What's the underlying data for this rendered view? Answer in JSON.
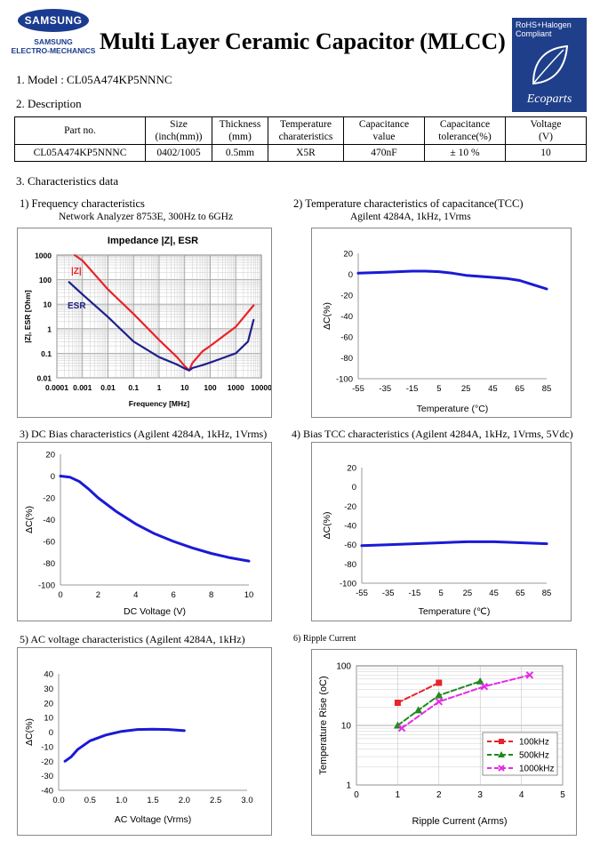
{
  "header": {
    "brand_name": "SAMSUNG",
    "brand_line1": "SAMSUNG",
    "brand_line2": "ELECTRO-MECHANICS",
    "title": "Multi Layer Ceramic Capacitor (MLCC)",
    "badge_text": "RoHS+Halogen Compliant",
    "badge_brand": "Ecoparts"
  },
  "model_line": "1. Model : CL05A474KP5NNNC",
  "description_heading": "2. Description",
  "table": {
    "headers": [
      [
        "Part no."
      ],
      [
        "Size",
        "(inch(mm))"
      ],
      [
        "Thickness",
        "(mm)"
      ],
      [
        "Temperature",
        "charateristics"
      ],
      [
        "Capacitance",
        "value"
      ],
      [
        "Capacitance",
        "tolerance(%)"
      ],
      [
        "Voltage",
        "(V)"
      ]
    ],
    "row": [
      "CL05A474KP5NNNC",
      "0402/1005",
      "0.5mm",
      "X5R",
      "470nF",
      "± 10 %",
      "10"
    ]
  },
  "char_heading": "3. Characteristics data",
  "charts": {
    "c1": {
      "caption": "1) Frequency characteristics",
      "subcaption": "Network Analyzer 8753E, 300Hz to 6GHz",
      "title": "Impedance |Z|,  ESR",
      "xlabel": "Frequency [MHz]",
      "ylabel": "|Z|, ESR [Ohm]",
      "xticks": [
        "0.0001",
        "0.001",
        "0.01",
        "0.1",
        "1",
        "10",
        "100",
        "1000",
        "10000"
      ],
      "yticks": [
        "1000",
        "100",
        "10",
        "1",
        "0.1",
        "0.01"
      ],
      "label_z": "|Z|",
      "label_esr": "ESR",
      "color_z": "#e8232a",
      "color_esr": "#1f1f8c"
    },
    "c2": {
      "caption": "2) Temperature characteristics of capacitance(TCC)",
      "subcaption": "Agilent 4284A, 1kHz, 1Vrms",
      "xlabel": "Temperature (°C)",
      "ylabel": "ΔC(%)",
      "xticks": [
        "-55",
        "-35",
        "-15",
        "5",
        "25",
        "45",
        "65",
        "85"
      ],
      "yticks": [
        "20",
        "0",
        "-20",
        "-40",
        "-60",
        "-80",
        "-100"
      ]
    },
    "c3": {
      "caption": "3) DC Bias characteristics (Agilent 4284A, 1kHz, 1Vrms)",
      "xlabel": "DC Voltage (V)",
      "ylabel": "ΔC(%)",
      "xticks": [
        "0",
        "2",
        "4",
        "6",
        "8",
        "10"
      ],
      "yticks": [
        "20",
        "0",
        "-20",
        "-40",
        "-60",
        "-80",
        "-100"
      ]
    },
    "c4": {
      "caption": "4) Bias TCC characteristics (Agilent 4284A, 1kHz, 1Vrms, 5Vdc)",
      "xlabel": "Temperature (℃)",
      "ylabel": "ΔC(%)",
      "xticks": [
        "-55",
        "-35",
        "-15",
        "5",
        "25",
        "45",
        "65",
        "85"
      ],
      "yticks": [
        "20",
        "0",
        "-20",
        "-40",
        "-60",
        "-80",
        "-100"
      ]
    },
    "c5": {
      "caption": "5) AC voltage characteristics (Agilent 4284A, 1kHz)",
      "xlabel": "AC Voltage (Vrms)",
      "ylabel": "ΔC(%)",
      "xticks": [
        "0.0",
        "0.5",
        "1.0",
        "1.5",
        "2.0",
        "2.5",
        "3.0"
      ],
      "yticks": [
        "40",
        "30",
        "20",
        "10",
        "0",
        "-10",
        "-20",
        "-30",
        "-40"
      ]
    },
    "c6": {
      "caption": "6) Ripple Current",
      "xlabel": "Ripple Current (Arms)",
      "ylabel": "Temperature Rise (oC)",
      "xticks": [
        "0",
        "1",
        "2",
        "3",
        "4",
        "5"
      ],
      "yticks": [
        "100",
        "10",
        "1"
      ],
      "legend": [
        "100kHz",
        "500kHz",
        "1000kHz"
      ],
      "colors": [
        "#e8232a",
        "#1f8a1f",
        "#e62be6"
      ]
    }
  },
  "chart_data": [
    {
      "type": "line",
      "title": "Impedance |Z|,  ESR",
      "xlabel": "Frequency [MHz]",
      "ylabel": "|Z|, ESR [Ohm]",
      "xscale": "log",
      "yscale": "log",
      "xlim": [
        0.0001,
        10000
      ],
      "ylim": [
        0.01,
        1000
      ],
      "grid": true,
      "series": [
        {
          "name": "|Z|",
          "x": [
            0.0005,
            0.001,
            0.01,
            0.1,
            1,
            5,
            10,
            15,
            20,
            50,
            100,
            1000,
            5000
          ],
          "y": [
            1000,
            600,
            40,
            4,
            0.35,
            0.07,
            0.03,
            0.02,
            0.04,
            0.12,
            0.2,
            1.2,
            9
          ]
        },
        {
          "name": "ESR",
          "x": [
            0.0003,
            0.001,
            0.01,
            0.1,
            1,
            5,
            10,
            15,
            20,
            50,
            100,
            1000,
            3000,
            5000
          ],
          "y": [
            80,
            25,
            3,
            0.3,
            0.07,
            0.035,
            0.024,
            0.02,
            0.025,
            0.033,
            0.042,
            0.1,
            0.3,
            2.3
          ]
        }
      ]
    },
    {
      "type": "line",
      "xlabel": "Temperature (°C)",
      "ylabel": "ΔC(%)",
      "xlim": [
        -55,
        85
      ],
      "ylim": [
        -100,
        20
      ],
      "grid": false,
      "series": [
        {
          "x": [
            -55,
            -35,
            -25,
            -15,
            -5,
            5,
            15,
            25,
            35,
            45,
            55,
            65,
            75,
            85
          ],
          "y": [
            1,
            2,
            2.5,
            3,
            3,
            2.5,
            1,
            -1,
            -2,
            -3,
            -4,
            -6,
            -10,
            -14
          ]
        }
      ]
    },
    {
      "type": "line",
      "xlabel": "DC Voltage (V)",
      "ylabel": "ΔC(%)",
      "xlim": [
        0,
        10
      ],
      "ylim": [
        -100,
        20
      ],
      "grid": false,
      "series": [
        {
          "x": [
            0,
            0.5,
            1,
            1.5,
            2,
            3,
            4,
            5,
            6,
            7,
            8,
            9,
            10
          ],
          "y": [
            0,
            -1,
            -5,
            -12,
            -20,
            -33,
            -44,
            -53,
            -60,
            -66,
            -71,
            -75,
            -78
          ]
        }
      ]
    },
    {
      "type": "line",
      "xlabel": "Temperature (℃)",
      "ylabel": "ΔC(%)",
      "xlim": [
        -55,
        85
      ],
      "ylim": [
        -100,
        20
      ],
      "grid": false,
      "series": [
        {
          "x": [
            -55,
            -35,
            -15,
            5,
            25,
            45,
            65,
            85
          ],
          "y": [
            -61,
            -60,
            -59,
            -58,
            -57,
            -57,
            -58,
            -59
          ]
        }
      ]
    },
    {
      "type": "line",
      "xlabel": "AC Voltage (Vrms)",
      "ylabel": "ΔC(%)",
      "xlim": [
        0,
        3
      ],
      "ylim": [
        -40,
        40
      ],
      "grid": false,
      "series": [
        {
          "x": [
            0.1,
            0.2,
            0.3,
            0.5,
            0.75,
            1.0,
            1.25,
            1.5,
            1.75,
            2.0
          ],
          "y": [
            -20,
            -17,
            -12,
            -6,
            -2,
            0.5,
            1.8,
            2,
            1.8,
            1
          ]
        }
      ]
    },
    {
      "type": "line",
      "xlabel": "Ripple Current (Arms)",
      "ylabel": "Temperature Rise (oC)",
      "yscale": "log",
      "xlim": [
        0,
        5
      ],
      "ylim": [
        1,
        100
      ],
      "grid": true,
      "series": [
        {
          "name": "100kHz",
          "x": [
            1,
            2
          ],
          "y": [
            24,
            52
          ]
        },
        {
          "name": "500kHz",
          "x": [
            1,
            1.5,
            2,
            3
          ],
          "y": [
            10,
            18,
            32,
            55
          ]
        },
        {
          "name": "1000kHz",
          "x": [
            1.1,
            2,
            3.1,
            4.2
          ],
          "y": [
            9,
            25,
            45,
            70
          ]
        }
      ]
    }
  ]
}
